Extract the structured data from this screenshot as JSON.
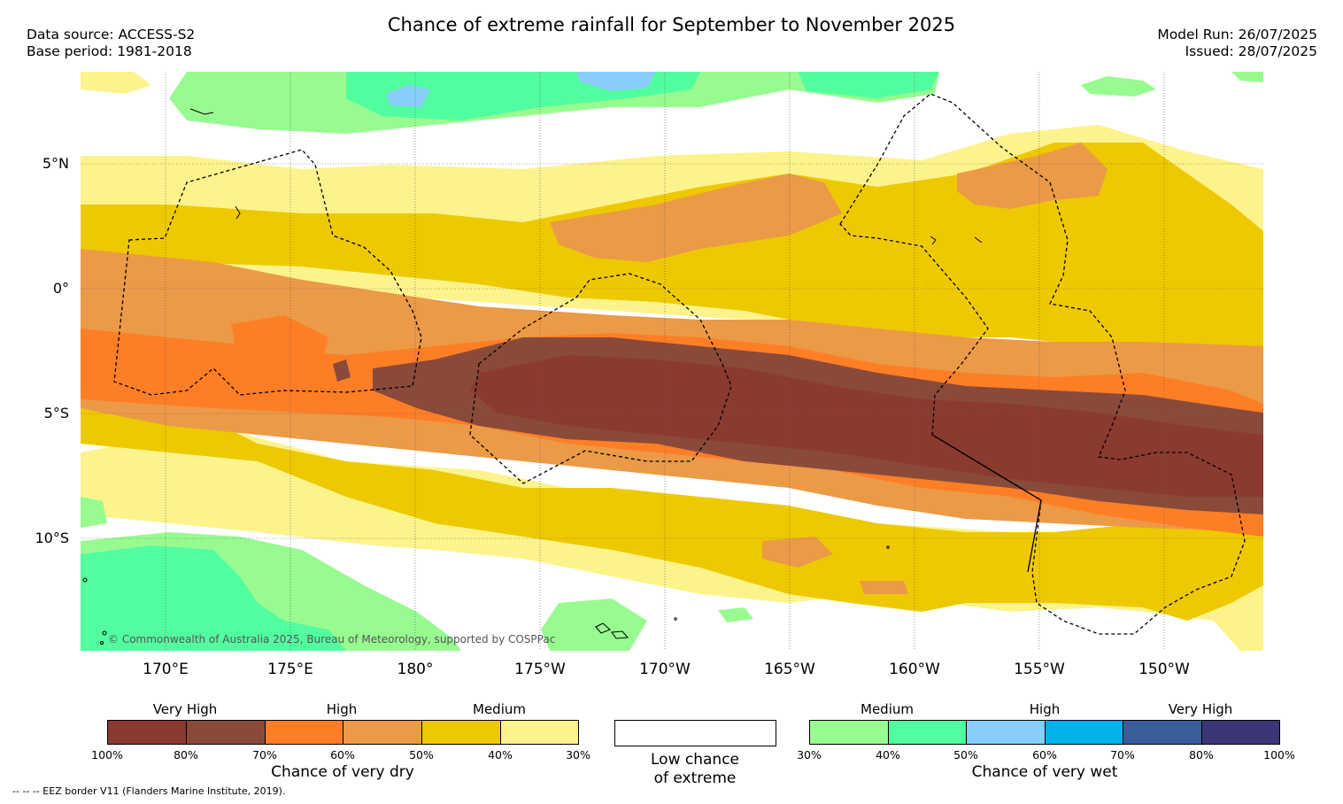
{
  "title": "Chance of extreme rainfall for September to November 2025",
  "data_source": "Data source: ACCESS-S2",
  "base_period": "Base period: 1981-2018",
  "model_run": "Model Run: 26/07/2025",
  "issued": "Issued: 28/07/2025",
  "copyright": "© Commonwealth of Australia 2025, Bureau of Meteorology, supported by COSPPac",
  "lat_labels": [
    "5°N",
    "0°",
    "5°S",
    "10°S"
  ],
  "lon_labels": [
    "170°E",
    "175°E",
    "180°",
    "175°W",
    "170°W",
    "165°W",
    "160°W",
    "155°W",
    "150°W"
  ],
  "legend": {
    "dry": {
      "headers": [
        "Very High",
        "High",
        "Medium"
      ],
      "ticks": [
        "100%",
        "80%",
        "70%",
        "60%",
        "50%",
        "40%",
        "30%"
      ],
      "label": "Chance of very dry",
      "colors": [
        "#8b3a30",
        "#8a4a3a",
        "#fe7e26",
        "#eb9a47",
        "#eec900",
        "#fdf38c"
      ]
    },
    "neutral": {
      "label_line1": "Low chance",
      "label_line2": "of extreme",
      "color": "#ffffff"
    },
    "wet": {
      "headers": [
        "Medium",
        "High",
        "Very High"
      ],
      "ticks": [
        "30%",
        "40%",
        "50%",
        "60%",
        "70%",
        "80%",
        "100%"
      ],
      "label": "Chance of very wet",
      "colors": [
        "#98fb90",
        "#52fda0",
        "#88cdfb",
        "#01b2ea",
        "#385f9c",
        "#3b3676"
      ]
    }
  },
  "eez_note": "--  --  -- EEZ border V11 (Flanders Marine Institute, 2019)."
}
